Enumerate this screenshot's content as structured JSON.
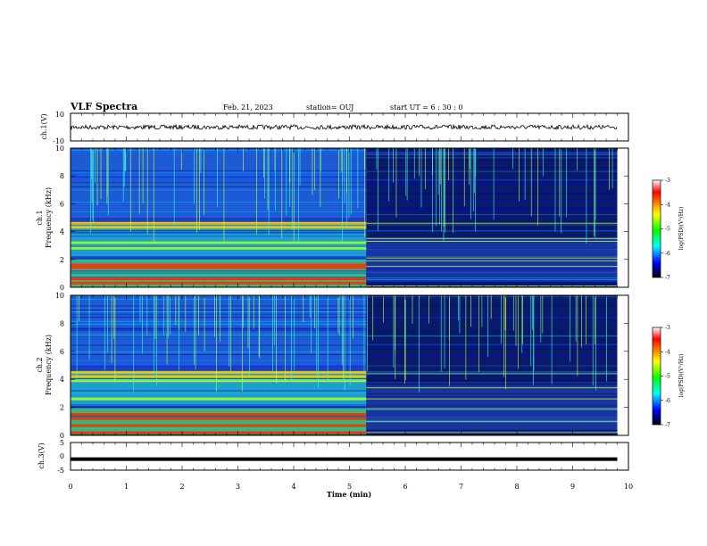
{
  "header": {
    "title": "VLF Spectra",
    "date": "Feb. 21, 2023",
    "station": "station= OUJ",
    "start": "start UT =  6 : 30 : 0"
  },
  "chart_data": [
    {
      "type": "line",
      "panel": "waveform-ch1",
      "ylabel": "ch.1(V)",
      "ylim": [
        -10,
        10
      ],
      "y_tick_labels": [
        "10",
        "-10"
      ],
      "trace_level": 0,
      "trace_color": "#000000"
    },
    {
      "type": "heatmap",
      "panel": "spectrogram-ch1",
      "ylabel_channel": "ch.1",
      "ylabel": "Frequency (kHz)",
      "xlim": [
        0,
        10
      ],
      "ylim": [
        0,
        10
      ],
      "y_tick_labels": [
        "0",
        "2",
        "4",
        "6",
        "8",
        "10"
      ],
      "data_end_min": 9.8,
      "transition_min": 5.3,
      "bands_before_kHz": [
        0.3,
        0.6,
        1.4,
        1.6,
        2.8,
        3.2,
        4.3,
        4.6
      ],
      "bands_after_kHz": [
        0.1,
        1.5,
        1.9,
        2.1,
        3.3,
        3.5,
        4.6
      ],
      "colorbar": {
        "label": "log(PSD)(V²/Hz)",
        "range": [
          -7,
          -3
        ],
        "tick_labels": [
          "-3",
          "-4",
          "-5",
          "-6",
          "-7"
        ],
        "colors": [
          "#ffffff",
          "#ff0000",
          "#ffff00",
          "#00ff00",
          "#00ffff",
          "#0000ff",
          "#000000"
        ]
      }
    },
    {
      "type": "heatmap",
      "panel": "spectrogram-ch2",
      "ylabel_channel": "ch.2",
      "ylabel": "Frequency (kHz)",
      "xlim": [
        0,
        10
      ],
      "ylim": [
        0,
        10
      ],
      "y_tick_labels": [
        "0",
        "2",
        "4",
        "6",
        "8",
        "10"
      ],
      "data_end_min": 9.8,
      "transition_min": 5.3,
      "bands_before_kHz": [
        0.2,
        0.7,
        1.2,
        1.5,
        2.6,
        3.9,
        4.2,
        4.5
      ],
      "bands_after_kHz": [
        0.2,
        1.0,
        1.9,
        2.6,
        3.4,
        4.4
      ],
      "colorbar": {
        "label": "log(PSD)(V²/Hz)",
        "range": [
          -7,
          -3
        ],
        "tick_labels": [
          "-3",
          "-4",
          "-5",
          "-6",
          "-7"
        ],
        "colors": [
          "#ffffff",
          "#ff0000",
          "#ffff00",
          "#00ff00",
          "#00ffff",
          "#0000ff",
          "#000000"
        ]
      }
    },
    {
      "type": "line",
      "panel": "waveform-ch3",
      "ylabel": "ch.3(V)",
      "ylim": [
        -5,
        5
      ],
      "y_tick_labels": [
        "5",
        "0",
        "-5"
      ],
      "trace_level": -1,
      "trace_color": "#000000",
      "xlabel": "Time (min)",
      "xlim": [
        0,
        10
      ],
      "x_tick_labels": [
        "0",
        "1",
        "2",
        "3",
        "4",
        "5",
        "6",
        "7",
        "8",
        "9",
        "10"
      ]
    }
  ]
}
